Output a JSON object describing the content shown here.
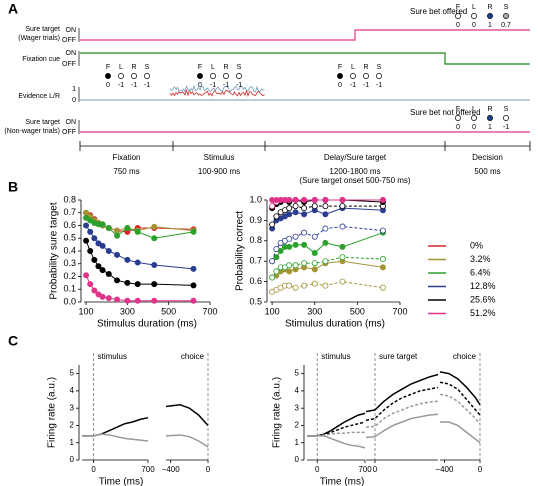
{
  "panel_labels": [
    "A",
    "B",
    "C"
  ],
  "panel_a": {
    "on_label": "ON",
    "off_label": "OFF",
    "rows": [
      [
        "Sure target",
        "(Wager trials)"
      ],
      [
        "Fixation cue"
      ],
      [
        "Evidence L/R"
      ],
      [
        "Sure target",
        "(Non-wager trials)"
      ]
    ],
    "evidence_ticks": [
      1,
      0
    ],
    "notes": [
      "Sure bet offered",
      "Sure bet not offered"
    ],
    "targets": [
      "F",
      "L",
      "R",
      "S"
    ],
    "icon_groups": [
      {
        "values": [
          0,
          -1,
          -1,
          -1
        ],
        "fills": [
          "#000",
          "#fff",
          "#fff",
          "#fff"
        ]
      },
      {
        "values": [
          0,
          -1,
          -1,
          -1
        ],
        "fills": [
          "#000",
          "#fff",
          "#fff",
          "#fff"
        ]
      },
      {
        "values": [
          0,
          -1,
          -1,
          -1
        ],
        "fills": [
          "#000",
          "#fff",
          "#fff",
          "#fff"
        ]
      },
      {
        "values": [
          0,
          0,
          1,
          0.7
        ],
        "fills": [
          "#fff",
          "#fff",
          "#1f3f8f",
          "#aaa"
        ]
      },
      {
        "values": [
          0,
          0,
          1,
          -1
        ],
        "fills": [
          "#fff",
          "#fff",
          "#1f3f8f",
          "#fff"
        ]
      }
    ],
    "epochs": [
      {
        "name": "Fixation",
        "duration": "750 ms"
      },
      {
        "name": "Stimulus",
        "duration": "100-900 ms"
      },
      {
        "name": "Delay/Sure target",
        "duration": "1200-1800 ms",
        "note": "(Sure target onset 500-750 ms)"
      },
      {
        "name": "Decision",
        "duration": "500 ms"
      }
    ]
  },
  "chart_data": [
    {
      "type": "line",
      "ylabel": "Probability sure target",
      "xlabel": "Stimulus duration (ms)",
      "markers": true,
      "legend": "outside right",
      "x": [
        100,
        120,
        140,
        160,
        180,
        210,
        250,
        300,
        350,
        430,
        620
      ],
      "xlim": [
        90,
        700
      ],
      "xticks": [
        100,
        300,
        500,
        700
      ],
      "ylim": [
        0,
        0.8
      ],
      "yticks": [
        {
          "value": 0,
          "label": "0.0"
        },
        0.1,
        0.2,
        0.3,
        0.4,
        0.5,
        0.6,
        0.7,
        0.8
      ],
      "series": [
        {
          "name": "0%",
          "color": "#d62728",
          "values": [
            0.7,
            0.68,
            0.65,
            0.62,
            0.6,
            0.58,
            0.56,
            0.55,
            0.58,
            0.58,
            0.57
          ]
        },
        {
          "name": "3.2%",
          "color": "#a39434",
          "values": [
            0.7,
            0.67,
            0.64,
            0.62,
            0.6,
            0.58,
            0.56,
            0.58,
            0.56,
            0.59,
            0.56
          ]
        },
        {
          "name": "6.4%",
          "color": "#2ca02c",
          "values": [
            0.66,
            0.64,
            0.62,
            0.61,
            0.61,
            0.58,
            0.52,
            0.58,
            0.55,
            0.5,
            0.55
          ]
        },
        {
          "name": "12.8%",
          "color": "#2a3d91",
          "values": [
            0.6,
            0.55,
            0.5,
            0.46,
            0.44,
            0.4,
            0.37,
            0.33,
            0.31,
            0.29,
            0.26
          ]
        },
        {
          "name": "25.6%",
          "color": "#000000",
          "values": [
            0.48,
            0.4,
            0.33,
            0.28,
            0.25,
            0.22,
            0.17,
            0.15,
            0.14,
            0.14,
            0.13
          ]
        },
        {
          "name": "51.2%",
          "color": "#e0338a",
          "values": [
            0.21,
            0.14,
            0.09,
            0.06,
            0.04,
            0.03,
            0.02,
            0.01,
            0.01,
            0.01,
            0.01
          ]
        }
      ]
    },
    {
      "type": "line",
      "ylabel": "Probability correct",
      "xlabel": "Stimulus duration (ms)",
      "markers": true,
      "x": [
        100,
        120,
        140,
        160,
        180,
        210,
        250,
        300,
        350,
        430,
        620
      ],
      "xlim": [
        90,
        700
      ],
      "xticks": [
        100,
        300,
        500,
        700
      ],
      "ylim": [
        0.5,
        1
      ],
      "yticks": [
        0.5,
        0.6,
        0.7,
        0.8,
        0.9,
        {
          "value": 1,
          "label": "1.0"
        }
      ],
      "series": [
        {
          "color": "#a39434",
          "filled": false,
          "values": [
            0.55,
            0.56,
            0.57,
            0.58,
            0.58,
            0.57,
            0.58,
            0.59,
            0.58,
            0.6,
            0.57
          ]
        },
        {
          "color": "#a39434",
          "filled": true,
          "values": [
            0.62,
            0.63,
            0.65,
            0.66,
            0.65,
            0.66,
            0.67,
            0.66,
            0.69,
            0.7,
            0.67
          ]
        },
        {
          "color": "#2ca02c",
          "filled": false,
          "values": [
            0.62,
            0.65,
            0.67,
            0.67,
            0.68,
            0.68,
            0.69,
            0.69,
            0.7,
            0.72,
            0.71
          ]
        },
        {
          "color": "#2ca02c",
          "filled": true,
          "values": [
            0.7,
            0.72,
            0.75,
            0.77,
            0.77,
            0.78,
            0.78,
            0.74,
            0.79,
            0.77,
            0.84
          ]
        },
        {
          "color": "#2a3d91",
          "filled": false,
          "values": [
            0.7,
            0.76,
            0.79,
            0.8,
            0.81,
            0.82,
            0.84,
            0.82,
            0.86,
            0.87,
            0.85
          ]
        },
        {
          "color": "#2a3d91",
          "filled": true,
          "values": [
            0.86,
            0.9,
            0.91,
            0.92,
            0.93,
            0.94,
            0.93,
            0.95,
            0.93,
            0.96,
            0.95
          ]
        },
        {
          "color": "#000000",
          "filled": false,
          "values": [
            0.88,
            0.92,
            0.94,
            0.95,
            0.96,
            0.97,
            0.96,
            0.97,
            0.97,
            0.97,
            0.97
          ]
        },
        {
          "color": "#000000",
          "filled": true,
          "values": [
            0.96,
            0.98,
            0.99,
            1.0,
            0.99,
            1.0,
            0.99,
            1.0,
            1.0,
            1.0,
            0.99
          ]
        },
        {
          "color": "#e0338a",
          "filled": false,
          "values": [
            0.97,
            0.99,
            1.0,
            1.0,
            1.0,
            1.0,
            1.0,
            1.0,
            1.0,
            1.0,
            1.0
          ]
        },
        {
          "color": "#e0338a",
          "filled": true,
          "values": [
            1.0,
            1.0,
            1.0,
            1.0,
            1.0,
            1.0,
            1.0,
            1.0,
            1.0,
            1.0,
            1.0
          ]
        }
      ]
    },
    {
      "type": "line",
      "title": "stimulus",
      "ylabel": "Firing rate (a.u.)",
      "xlabel": "Time (ms)",
      "x": [
        -150,
        0,
        100,
        200,
        300,
        400,
        500,
        600,
        700
      ],
      "xlim": [
        -150,
        700
      ],
      "xticks": [
        0,
        700
      ],
      "ylim": [
        0,
        5.5
      ],
      "yticks": [
        0,
        1,
        2,
        3,
        4,
        5
      ],
      "series": [
        {
          "color": "#000000",
          "dashed": false,
          "values": [
            1.4,
            1.4,
            1.5,
            1.7,
            1.9,
            2.1,
            2.2,
            2.35,
            2.45
          ]
        },
        {
          "color": "#999999",
          "dashed": false,
          "values": [
            1.4,
            1.4,
            1.5,
            1.45,
            1.35,
            1.25,
            1.2,
            1.15,
            1.1
          ]
        }
      ]
    },
    {
      "type": "line",
      "title": "choice",
      "x": [
        -450,
        -300,
        -200,
        -100,
        0
      ],
      "xlim": [
        -450,
        0
      ],
      "xticks": [
        {
          "value": -400,
          "label": "−400"
        },
        0
      ],
      "ylim": [
        0,
        5.5
      ],
      "series": [
        {
          "color": "#000000",
          "dashed": false,
          "values": [
            3.1,
            3.2,
            3.0,
            2.6,
            2.0
          ]
        },
        {
          "color": "#999999",
          "dashed": false,
          "values": [
            1.4,
            1.45,
            1.35,
            1.1,
            0.75
          ]
        }
      ]
    },
    {
      "type": "line",
      "title": "stimulus",
      "ylabel": "Firing rate (a.u.)",
      "xlabel": "Time (ms)",
      "x": [
        -150,
        0,
        100,
        200,
        300,
        400,
        500,
        600,
        700
      ],
      "xlim": [
        -150,
        700
      ],
      "xticks": [
        0,
        700
      ],
      "ylim": [
        0,
        5.5
      ],
      "yticks": [
        0,
        1,
        2,
        3,
        4,
        5
      ],
      "series": [
        {
          "color": "#000000",
          "dashed": false,
          "values": [
            1.4,
            1.4,
            1.5,
            1.7,
            1.95,
            2.2,
            2.4,
            2.6,
            2.7
          ]
        },
        {
          "color": "#000000",
          "dashed": true,
          "values": [
            1.4,
            1.4,
            1.45,
            1.6,
            1.75,
            1.9,
            2.0,
            2.1,
            2.2
          ]
        },
        {
          "color": "#999999",
          "dashed": true,
          "values": [
            1.4,
            1.4,
            1.45,
            1.5,
            1.55,
            1.55,
            1.6,
            1.6,
            1.6
          ]
        },
        {
          "color": "#999999",
          "dashed": false,
          "values": [
            1.4,
            1.4,
            1.4,
            1.25,
            1.1,
            0.95,
            0.85,
            0.8,
            0.7
          ]
        }
      ]
    },
    {
      "type": "line",
      "title": "sure target",
      "x": [
        -100,
        0,
        100,
        200,
        300,
        400,
        500,
        600,
        700
      ],
      "xlim": [
        -100,
        700
      ],
      "xticks": [
        0
      ],
      "ylim": [
        0,
        5.5
      ],
      "series": [
        {
          "color": "#000000",
          "dashed": false,
          "values": [
            2.8,
            2.9,
            3.4,
            3.8,
            4.1,
            4.4,
            4.6,
            4.8,
            4.95
          ]
        },
        {
          "color": "#000000",
          "dashed": true,
          "values": [
            2.3,
            2.4,
            2.9,
            3.3,
            3.6,
            3.8,
            4.0,
            4.1,
            4.2
          ]
        },
        {
          "color": "#999999",
          "dashed": true,
          "values": [
            1.9,
            1.95,
            2.4,
            2.7,
            2.9,
            3.1,
            3.25,
            3.35,
            3.4
          ]
        },
        {
          "color": "#999999",
          "dashed": false,
          "values": [
            1.3,
            1.35,
            1.7,
            2.0,
            2.2,
            2.4,
            2.5,
            2.6,
            2.65
          ]
        }
      ]
    },
    {
      "type": "line",
      "title": "choice",
      "x": [
        -450,
        -350,
        -250,
        -150,
        -50,
        0
      ],
      "xlim": [
        -450,
        0
      ],
      "xticks": [
        {
          "value": -400,
          "label": "−400"
        },
        0
      ],
      "ylim": [
        0,
        5.5
      ],
      "series": [
        {
          "color": "#000000",
          "dashed": false,
          "values": [
            5.1,
            5.0,
            4.7,
            4.2,
            3.6,
            3.2
          ]
        },
        {
          "color": "#000000",
          "dashed": true,
          "values": [
            4.5,
            4.4,
            4.1,
            3.5,
            2.9,
            2.6
          ]
        },
        {
          "color": "#999999",
          "dashed": true,
          "values": [
            3.8,
            3.7,
            3.4,
            2.9,
            2.4,
            2.1
          ]
        },
        {
          "color": "#999999",
          "dashed": false,
          "values": [
            2.2,
            2.2,
            2.0,
            1.6,
            1.2,
            1.0
          ]
        }
      ]
    }
  ]
}
